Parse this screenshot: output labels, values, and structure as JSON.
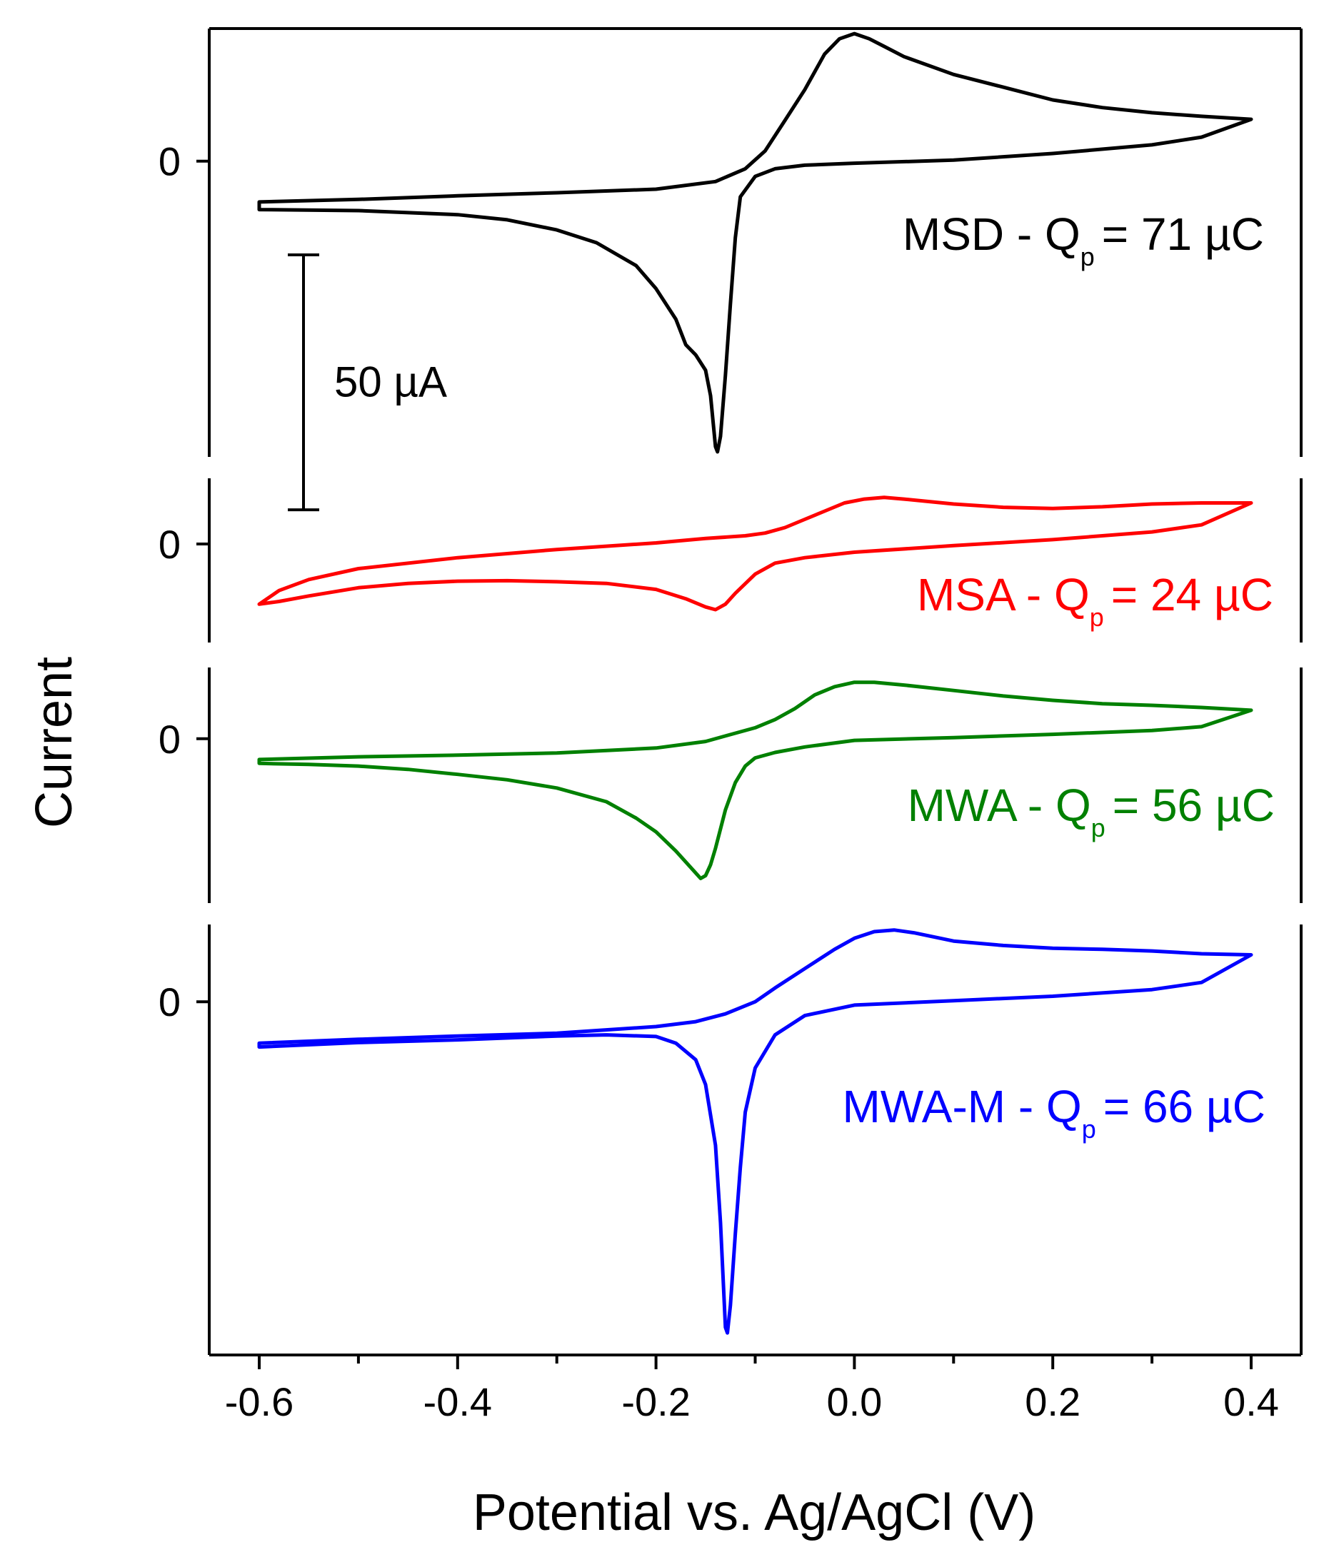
{
  "chart_data": {
    "type": "line",
    "title": "",
    "xlabel": "Potential vs. Ag/AgCl (V)",
    "ylabel": "Current",
    "xlim": [
      -0.6,
      0.4
    ],
    "x_ticks": [
      "-0.6",
      "-0.4",
      "-0.2",
      "0.0",
      "0.2",
      "0.4"
    ],
    "x_tick_values": [
      -0.6,
      -0.4,
      -0.2,
      0.0,
      0.2,
      0.4
    ],
    "x_minor_ticks": [
      -0.5,
      -0.3,
      -0.1,
      0.1,
      0.3
    ],
    "y_units": "uA",
    "scale_bar": {
      "label": "50 µA",
      "value": 50
    },
    "series": [
      {
        "name": "MSD",
        "label": "MSD - Q",
        "subscript": "p",
        "value_text": "= 71 µC",
        "charge_uC": 71,
        "color": "#000000",
        "zero_label": "0",
        "ylim": [
          -58,
          26
        ],
        "forward": [
          [
            -0.6,
            -9.5
          ],
          [
            -0.5,
            -9.7
          ],
          [
            -0.4,
            -10.5
          ],
          [
            -0.35,
            -11.5
          ],
          [
            -0.3,
            -13.5
          ],
          [
            -0.26,
            -16
          ],
          [
            -0.22,
            -20.5
          ],
          [
            -0.2,
            -25
          ],
          [
            -0.18,
            -31
          ],
          [
            -0.17,
            -36
          ],
          [
            -0.16,
            -38
          ],
          [
            -0.15,
            -41
          ],
          [
            -0.145,
            -46
          ],
          [
            -0.14,
            -56
          ],
          [
            -0.138,
            -57
          ],
          [
            -0.135,
            -54
          ],
          [
            -0.13,
            -42
          ],
          [
            -0.125,
            -28
          ],
          [
            -0.12,
            -15
          ],
          [
            -0.115,
            -7
          ],
          [
            -0.1,
            -3
          ],
          [
            -0.08,
            -1.5
          ],
          [
            -0.05,
            -0.8
          ],
          [
            0.0,
            -0.4
          ],
          [
            0.1,
            0.2
          ],
          [
            0.2,
            1.5
          ],
          [
            0.3,
            3.2
          ],
          [
            0.35,
            4.7
          ],
          [
            0.4,
            8.2
          ]
        ],
        "reverse": [
          [
            0.4,
            8.2
          ],
          [
            0.35,
            8.8
          ],
          [
            0.3,
            9.5
          ],
          [
            0.25,
            10.5
          ],
          [
            0.2,
            12
          ],
          [
            0.15,
            14.5
          ],
          [
            0.1,
            17
          ],
          [
            0.05,
            20.5
          ],
          [
            0.03,
            22.5
          ],
          [
            0.015,
            24
          ],
          [
            0.0,
            25
          ],
          [
            -0.015,
            24
          ],
          [
            -0.03,
            21
          ],
          [
            -0.05,
            14
          ],
          [
            -0.07,
            8
          ],
          [
            -0.09,
            2
          ],
          [
            -0.11,
            -1.5
          ],
          [
            -0.14,
            -4
          ],
          [
            -0.2,
            -5.5
          ],
          [
            -0.3,
            -6.2
          ],
          [
            -0.4,
            -6.8
          ],
          [
            -0.5,
            -7.5
          ],
          [
            -0.6,
            -8
          ]
        ]
      },
      {
        "name": "MSA",
        "label": "MSA - Q",
        "subscript": "p",
        "value_text": "= 24 µC",
        "charge_uC": 24,
        "color": "#ff0000",
        "zero_label": "0",
        "ylim": [
          -18,
          12
        ],
        "forward": [
          [
            -0.6,
            -11
          ],
          [
            -0.58,
            -10.5
          ],
          [
            -0.55,
            -9.5
          ],
          [
            -0.5,
            -8
          ],
          [
            -0.45,
            -7.2
          ],
          [
            -0.4,
            -6.8
          ],
          [
            -0.35,
            -6.7
          ],
          [
            -0.3,
            -6.9
          ],
          [
            -0.25,
            -7.2
          ],
          [
            -0.2,
            -8.3
          ],
          [
            -0.17,
            -10
          ],
          [
            -0.15,
            -11.5
          ],
          [
            -0.14,
            -12
          ],
          [
            -0.13,
            -11
          ],
          [
            -0.12,
            -9
          ],
          [
            -0.1,
            -5.5
          ],
          [
            -0.08,
            -3.5
          ],
          [
            -0.05,
            -2.5
          ],
          [
            0.0,
            -1.5
          ],
          [
            0.1,
            -0.3
          ],
          [
            0.2,
            0.8
          ],
          [
            0.3,
            2.2
          ],
          [
            0.35,
            3.5
          ],
          [
            0.4,
            7.5
          ]
        ],
        "reverse": [
          [
            0.4,
            7.5
          ],
          [
            0.35,
            7.5
          ],
          [
            0.3,
            7.3
          ],
          [
            0.25,
            6.8
          ],
          [
            0.2,
            6.5
          ],
          [
            0.15,
            6.7
          ],
          [
            0.1,
            7.3
          ],
          [
            0.05,
            8.2
          ],
          [
            0.03,
            8.5
          ],
          [
            0.01,
            8.2
          ],
          [
            -0.01,
            7.5
          ],
          [
            -0.03,
            6
          ],
          [
            -0.05,
            4.5
          ],
          [
            -0.07,
            3
          ],
          [
            -0.09,
            2
          ],
          [
            -0.11,
            1.5
          ],
          [
            -0.15,
            1
          ],
          [
            -0.2,
            0.2
          ],
          [
            -0.3,
            -1
          ],
          [
            -0.4,
            -2.5
          ],
          [
            -0.5,
            -4.5
          ],
          [
            -0.55,
            -6.5
          ],
          [
            -0.58,
            -8.5
          ],
          [
            -0.6,
            -11
          ]
        ]
      },
      {
        "name": "MWA",
        "label": "MWA - Q",
        "subscript": "p",
        "value_text": "= 56 µC",
        "charge_uC": 56,
        "color": "#008000",
        "zero_label": "0",
        "ylim": [
          -30,
          13
        ],
        "forward": [
          [
            -0.6,
            -4.5
          ],
          [
            -0.55,
            -4.7
          ],
          [
            -0.5,
            -5
          ],
          [
            -0.45,
            -5.6
          ],
          [
            -0.4,
            -6.5
          ],
          [
            -0.35,
            -7.5
          ],
          [
            -0.3,
            -9
          ],
          [
            -0.25,
            -11.5
          ],
          [
            -0.22,
            -14.5
          ],
          [
            -0.2,
            -17
          ],
          [
            -0.18,
            -20.5
          ],
          [
            -0.17,
            -22.5
          ],
          [
            -0.16,
            -24.5
          ],
          [
            -0.155,
            -25.5
          ],
          [
            -0.15,
            -25
          ],
          [
            -0.145,
            -23
          ],
          [
            -0.14,
            -20
          ],
          [
            -0.13,
            -13
          ],
          [
            -0.12,
            -8
          ],
          [
            -0.11,
            -5
          ],
          [
            -0.1,
            -3.5
          ],
          [
            -0.08,
            -2.5
          ],
          [
            -0.05,
            -1.5
          ],
          [
            0.0,
            -0.3
          ],
          [
            0.1,
            0.2
          ],
          [
            0.2,
            0.8
          ],
          [
            0.3,
            1.5
          ],
          [
            0.35,
            2.2
          ],
          [
            0.4,
            5.2
          ]
        ],
        "reverse": [
          [
            0.4,
            5.2
          ],
          [
            0.35,
            5.7
          ],
          [
            0.3,
            6.1
          ],
          [
            0.25,
            6.4
          ],
          [
            0.2,
            7
          ],
          [
            0.15,
            7.8
          ],
          [
            0.1,
            8.8
          ],
          [
            0.05,
            9.8
          ],
          [
            0.02,
            10.3
          ],
          [
            0.0,
            10.3
          ],
          [
            -0.02,
            9.5
          ],
          [
            -0.04,
            8
          ],
          [
            -0.06,
            5.5
          ],
          [
            -0.08,
            3.5
          ],
          [
            -0.1,
            2
          ],
          [
            -0.13,
            0.5
          ],
          [
            -0.15,
            -0.5
          ],
          [
            -0.2,
            -1.7
          ],
          [
            -0.3,
            -2.6
          ],
          [
            -0.4,
            -3
          ],
          [
            -0.5,
            -3.3
          ],
          [
            -0.6,
            -3.8
          ]
        ]
      },
      {
        "name": "MWA-M",
        "label": "MWA-M - Q",
        "subscript": "p",
        "value_text": "= 66 µC",
        "charge_uC": 66,
        "color": "#0000ff",
        "zero_label": "0",
        "ylim": [
          -64,
          14
        ],
        "forward": [
          [
            -0.6,
            -8.2
          ],
          [
            -0.5,
            -7.4
          ],
          [
            -0.4,
            -6.9
          ],
          [
            -0.3,
            -6.2
          ],
          [
            -0.25,
            -6
          ],
          [
            -0.2,
            -6.3
          ],
          [
            -0.18,
            -7.5
          ],
          [
            -0.16,
            -10.5
          ],
          [
            -0.15,
            -15
          ],
          [
            -0.14,
            -26
          ],
          [
            -0.135,
            -40
          ],
          [
            -0.13,
            -59
          ],
          [
            -0.128,
            -60
          ],
          [
            -0.125,
            -55
          ],
          [
            -0.12,
            -42
          ],
          [
            -0.115,
            -30
          ],
          [
            -0.11,
            -20
          ],
          [
            -0.1,
            -12
          ],
          [
            -0.08,
            -6
          ],
          [
            -0.05,
            -2.5
          ],
          [
            0.0,
            -0.6
          ],
          [
            0.1,
            0.2
          ],
          [
            0.2,
            1
          ],
          [
            0.3,
            2.2
          ],
          [
            0.35,
            3.5
          ],
          [
            0.4,
            8.5
          ]
        ],
        "reverse": [
          [
            0.4,
            8.5
          ],
          [
            0.35,
            8.7
          ],
          [
            0.3,
            9.2
          ],
          [
            0.25,
            9.5
          ],
          [
            0.2,
            9.7
          ],
          [
            0.15,
            10.2
          ],
          [
            0.1,
            11
          ],
          [
            0.06,
            12.5
          ],
          [
            0.04,
            13
          ],
          [
            0.02,
            12.7
          ],
          [
            0.0,
            11.5
          ],
          [
            -0.02,
            9.5
          ],
          [
            -0.05,
            6
          ],
          [
            -0.08,
            2.5
          ],
          [
            -0.1,
            0
          ],
          [
            -0.13,
            -2.2
          ],
          [
            -0.16,
            -3.6
          ],
          [
            -0.2,
            -4.5
          ],
          [
            -0.3,
            -5.7
          ],
          [
            -0.4,
            -6.2
          ],
          [
            -0.5,
            -6.8
          ],
          [
            -0.6,
            -7.5
          ]
        ]
      }
    ]
  }
}
